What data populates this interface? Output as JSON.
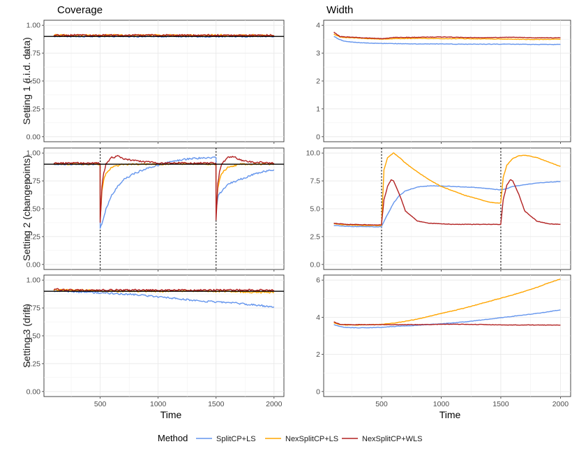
{
  "chart_data": {
    "type": "line",
    "columns": [
      "Coverage",
      "Width"
    ],
    "rows": [
      "Setting 1 (i.i.d. data)",
      "Setting 2 (changepoints)",
      "Setting 3 (drift)"
    ],
    "xlabel": "Time",
    "x_ticks": [
      500,
      1000,
      1500,
      2000
    ],
    "xlim": [
      100,
      2000
    ],
    "legend": {
      "title": "Method",
      "placement": "bottom",
      "entries": [
        {
          "name": "SplitCP+LS",
          "color": "#6495ed"
        },
        {
          "name": "NexSplitCP+LS",
          "color": "#ffa500"
        },
        {
          "name": "NexSplitCP+WLS",
          "color": "#b22222"
        }
      ]
    },
    "reference_line": {
      "panel": "Coverage",
      "y": 0.9,
      "color": "#000000"
    },
    "changepoints": {
      "row": "Setting 2 (changepoints)",
      "x": [
        500,
        1500
      ]
    },
    "panels": [
      {
        "row": 0,
        "col": 0,
        "ylim": [
          0,
          1
        ],
        "y_ticks": [
          "0.00",
          "0.25",
          "0.50",
          "0.75",
          "1.00"
        ],
        "series": [
          {
            "name": "SplitCP+LS",
            "x": [
              100,
              200,
              300,
              400,
              500,
              600,
              700,
              800,
              900,
              1000,
              1100,
              1200,
              1300,
              1400,
              1500,
              1600,
              1700,
              1800,
              1900,
              2000
            ],
            "y": [
              0.9,
              0.9,
              0.9,
              0.9,
              0.9,
              0.9,
              0.9,
              0.9,
              0.9,
              0.9,
              0.9,
              0.9,
              0.9,
              0.9,
              0.9,
              0.9,
              0.9,
              0.9,
              0.9,
              0.9
            ]
          },
          {
            "name": "NexSplitCP+LS",
            "x": [
              100,
              200,
              300,
              400,
              500,
              600,
              700,
              800,
              900,
              1000,
              1100,
              1200,
              1300,
              1400,
              1500,
              1600,
              1700,
              1800,
              1900,
              2000
            ],
            "y": [
              0.91,
              0.91,
              0.91,
              0.91,
              0.91,
              0.91,
              0.91,
              0.91,
              0.91,
              0.91,
              0.91,
              0.91,
              0.91,
              0.91,
              0.91,
              0.91,
              0.91,
              0.91,
              0.91,
              0.91
            ]
          },
          {
            "name": "NexSplitCP+WLS",
            "x": [
              100,
              200,
              300,
              400,
              500,
              600,
              700,
              800,
              900,
              1000,
              1100,
              1200,
              1300,
              1400,
              1500,
              1600,
              1700,
              1800,
              1900,
              2000
            ],
            "y": [
              0.91,
              0.91,
              0.91,
              0.91,
              0.91,
              0.91,
              0.91,
              0.91,
              0.91,
              0.91,
              0.91,
              0.91,
              0.91,
              0.91,
              0.91,
              0.91,
              0.91,
              0.91,
              0.91,
              0.91
            ]
          }
        ]
      },
      {
        "row": 0,
        "col": 1,
        "ylim": [
          0,
          4
        ],
        "y_ticks": [
          "0",
          "1",
          "2",
          "3",
          "4"
        ],
        "series": [
          {
            "name": "SplitCP+LS",
            "x": [
              100,
              150,
              200,
              300,
              400,
              500,
              600,
              800,
              1000,
              1200,
              1400,
              1600,
              1800,
              2000
            ],
            "y": [
              3.6,
              3.48,
              3.42,
              3.38,
              3.36,
              3.35,
              3.34,
              3.33,
              3.33,
              3.32,
              3.32,
              3.32,
              3.31,
              3.31
            ]
          },
          {
            "name": "NexSplitCP+LS",
            "x": [
              100,
              150,
              200,
              300,
              400,
              500,
              600,
              800,
              1000,
              1200,
              1400,
              1600,
              1800,
              2000
            ],
            "y": [
              3.68,
              3.58,
              3.56,
              3.54,
              3.52,
              3.5,
              3.52,
              3.53,
              3.52,
              3.52,
              3.51,
              3.5,
              3.49,
              3.5
            ]
          },
          {
            "name": "NexSplitCP+WLS",
            "x": [
              100,
              150,
              200,
              300,
              400,
              500,
              600,
              800,
              1000,
              1200,
              1400,
              1600,
              1800,
              2000
            ],
            "y": [
              3.75,
              3.6,
              3.58,
              3.56,
              3.54,
              3.52,
              3.56,
              3.57,
              3.58,
              3.56,
              3.56,
              3.57,
              3.55,
              3.55
            ]
          }
        ]
      },
      {
        "row": 1,
        "col": 0,
        "ylim": [
          0,
          1
        ],
        "y_ticks": [
          "0.00",
          "0.25",
          "0.50",
          "0.75",
          "1.00"
        ],
        "series": [
          {
            "name": "SplitCP+LS",
            "x": [
              100,
              300,
              499,
              500,
              520,
              550,
              600,
              650,
              700,
              800,
              900,
              1000,
              1100,
              1200,
              1300,
              1400,
              1499,
              1500,
              1520,
              1550,
              1600,
              1700,
              1800,
              1900,
              2000
            ],
            "y": [
              0.9,
              0.9,
              0.9,
              0.33,
              0.38,
              0.5,
              0.62,
              0.7,
              0.76,
              0.82,
              0.86,
              0.89,
              0.92,
              0.94,
              0.95,
              0.96,
              0.96,
              0.5,
              0.62,
              0.66,
              0.72,
              0.76,
              0.8,
              0.83,
              0.85
            ]
          },
          {
            "name": "NexSplitCP+LS",
            "x": [
              100,
              300,
              499,
              500,
              515,
              530,
              550,
              600,
              700,
              800,
              1000,
              1200,
              1400,
              1499,
              1500,
              1515,
              1530,
              1550,
              1600,
              1700,
              1800,
              2000
            ],
            "y": [
              0.9,
              0.9,
              0.9,
              0.4,
              0.66,
              0.76,
              0.82,
              0.87,
              0.9,
              0.9,
              0.9,
              0.9,
              0.9,
              0.9,
              0.45,
              0.68,
              0.76,
              0.82,
              0.87,
              0.9,
              0.9,
              0.9
            ]
          },
          {
            "name": "NexSplitCP+WLS",
            "x": [
              100,
              300,
              499,
              500,
              515,
              530,
              550,
              600,
              650,
              700,
              800,
              900,
              1000,
              1200,
              1400,
              1499,
              1500,
              1515,
              1530,
              1550,
              1600,
              1650,
              1700,
              1800,
              2000
            ],
            "y": [
              0.91,
              0.91,
              0.91,
              0.38,
              0.7,
              0.82,
              0.9,
              0.96,
              0.97,
              0.95,
              0.93,
              0.92,
              0.91,
              0.91,
              0.91,
              0.91,
              0.4,
              0.72,
              0.83,
              0.9,
              0.96,
              0.97,
              0.94,
              0.92,
              0.91
            ]
          }
        ]
      },
      {
        "row": 1,
        "col": 1,
        "ylim": [
          0,
          10
        ],
        "y_ticks": [
          "0.0",
          "2.5",
          "5.0",
          "7.5",
          "10.0"
        ],
        "series": [
          {
            "name": "SplitCP+LS",
            "x": [
              100,
              200,
              300,
              400,
              499,
              500,
              550,
              600,
              650,
              700,
              800,
              900,
              1000,
              1100,
              1200,
              1300,
              1400,
              1499,
              1500,
              1550,
              1600,
              1700,
              1800,
              1900,
              2000
            ],
            "y": [
              3.5,
              3.42,
              3.4,
              3.39,
              3.38,
              3.4,
              4.5,
              5.5,
              6.2,
              6.6,
              6.95,
              7.05,
              7.05,
              7.0,
              6.95,
              6.9,
              6.8,
              6.7,
              6.7,
              6.8,
              7.0,
              7.15,
              7.3,
              7.38,
              7.45
            ]
          },
          {
            "name": "NexSplitCP+LS",
            "x": [
              100,
              200,
              300,
              400,
              499,
              500,
              520,
              550,
              600,
              650,
              700,
              800,
              900,
              1000,
              1100,
              1200,
              1300,
              1400,
              1480,
              1499,
              1500,
              1520,
              1550,
              1600,
              1650,
              1700,
              1800,
              1900,
              2000
            ],
            "y": [
              3.65,
              3.55,
              3.52,
              3.5,
              3.5,
              3.6,
              8.5,
              9.6,
              10.0,
              9.6,
              9.1,
              8.3,
              7.6,
              7.0,
              6.6,
              6.2,
              5.9,
              5.6,
              5.5,
              5.5,
              5.6,
              7.8,
              8.9,
              9.5,
              9.75,
              9.8,
              9.6,
              9.2,
              8.8
            ]
          },
          {
            "name": "NexSplitCP+WLS",
            "x": [
              100,
              200,
              300,
              400,
              499,
              500,
              520,
              550,
              580,
              600,
              650,
              700,
              800,
              900,
              1000,
              1100,
              1200,
              1300,
              1400,
              1499,
              1500,
              1520,
              1550,
              1580,
              1600,
              1650,
              1700,
              1800,
              1900,
              2000
            ],
            "y": [
              3.7,
              3.6,
              3.58,
              3.56,
              3.55,
              3.65,
              5.8,
              7.0,
              7.6,
              7.5,
              6.3,
              4.8,
              3.9,
              3.7,
              3.65,
              3.6,
              3.6,
              3.6,
              3.6,
              3.6,
              3.65,
              5.8,
              7.1,
              7.6,
              7.5,
              6.3,
              4.8,
              3.9,
              3.65,
              3.6
            ]
          }
        ]
      },
      {
        "row": 2,
        "col": 0,
        "ylim": [
          0,
          1
        ],
        "y_ticks": [
          "0.00",
          "0.25",
          "0.50",
          "0.75",
          "1.00"
        ],
        "series": [
          {
            "name": "SplitCP+LS",
            "x": [
              100,
              200,
              400,
              600,
              800,
              1000,
              1200,
              1400,
              1600,
              1800,
              2000
            ],
            "y": [
              0.9,
              0.9,
              0.89,
              0.88,
              0.87,
              0.85,
              0.83,
              0.81,
              0.8,
              0.78,
              0.76
            ]
          },
          {
            "name": "NexSplitCP+LS",
            "x": [
              100,
              200,
              400,
              600,
              800,
              1000,
              1200,
              1400,
              1600,
              1800,
              2000
            ],
            "y": [
              0.91,
              0.91,
              0.91,
              0.9,
              0.9,
              0.9,
              0.9,
              0.9,
              0.9,
              0.89,
              0.89
            ]
          },
          {
            "name": "NexSplitCP+WLS",
            "x": [
              100,
              200,
              400,
              600,
              800,
              1000,
              1200,
              1400,
              1600,
              1800,
              2000
            ],
            "y": [
              0.92,
              0.91,
              0.91,
              0.91,
              0.91,
              0.91,
              0.91,
              0.91,
              0.91,
              0.91,
              0.91
            ]
          }
        ]
      },
      {
        "row": 2,
        "col": 1,
        "ylim": [
          0,
          6
        ],
        "y_ticks": [
          "0",
          "2",
          "4",
          "6"
        ],
        "series": [
          {
            "name": "SplitCP+LS",
            "x": [
              100,
              150,
              200,
              300,
              400,
              500,
              600,
              800,
              1000,
              1200,
              1400,
              1600,
              1800,
              2000
            ],
            "y": [
              3.6,
              3.5,
              3.45,
              3.43,
              3.44,
              3.46,
              3.5,
              3.57,
              3.65,
              3.75,
              3.9,
              4.05,
              4.2,
              4.4
            ]
          },
          {
            "name": "NexSplitCP+LS",
            "x": [
              100,
              150,
              200,
              300,
              400,
              500,
              600,
              700,
              800,
              1000,
              1200,
              1400,
              1600,
              1800,
              1900,
              2000
            ],
            "y": [
              3.7,
              3.6,
              3.58,
              3.58,
              3.6,
              3.62,
              3.68,
              3.78,
              3.9,
              4.2,
              4.5,
              4.85,
              5.2,
              5.6,
              5.85,
              6.05
            ]
          },
          {
            "name": "NexSplitCP+WLS",
            "x": [
              100,
              150,
              200,
              300,
              400,
              500,
              600,
              800,
              1000,
              1200,
              1400,
              1600,
              1800,
              2000
            ],
            "y": [
              3.75,
              3.62,
              3.6,
              3.6,
              3.6,
              3.6,
              3.6,
              3.6,
              3.62,
              3.62,
              3.6,
              3.58,
              3.58,
              3.58
            ]
          }
        ]
      }
    ]
  }
}
